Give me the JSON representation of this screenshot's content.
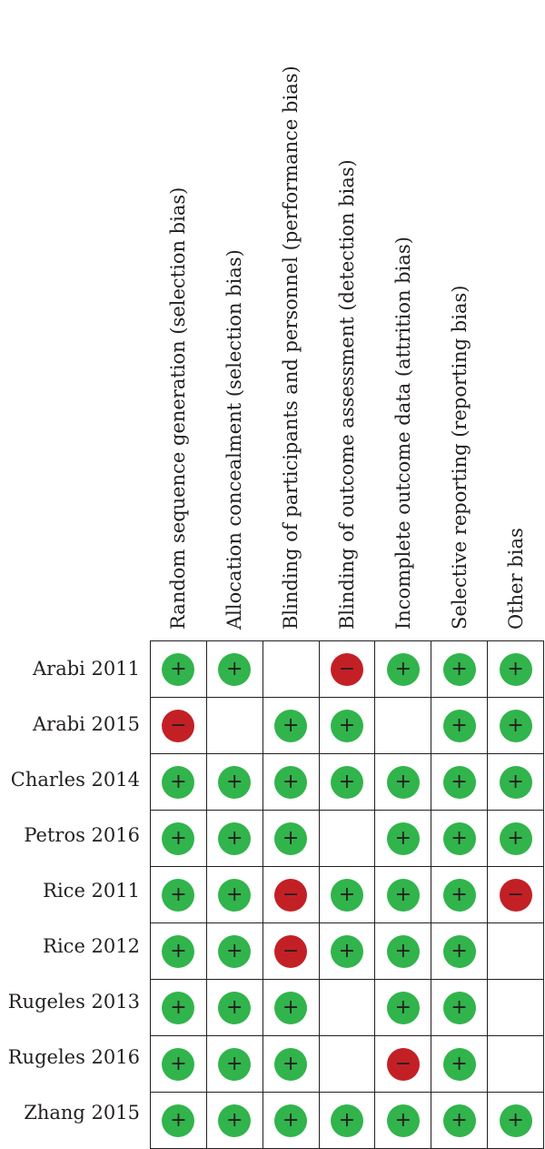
{
  "domains": [
    "Random sequence generation (selection bias)",
    "Allocation concealment (selection bias)",
    "Blinding of participants and personnel (performance bias)",
    "Blinding of outcome assessment (detection bias)",
    "Incomplete outcome data (attrition bias)",
    "Selective reporting (reporting bias)",
    "Other bias"
  ],
  "studies": [
    {
      "name": "Arabi 2011",
      "ratings": [
        "low",
        "low",
        "",
        "high",
        "low",
        "low",
        "low"
      ]
    },
    {
      "name": "Arabi 2015",
      "ratings": [
        "high",
        "",
        "low",
        "low",
        "",
        "low",
        "low"
      ]
    },
    {
      "name": "Charles 2014",
      "ratings": [
        "low",
        "low",
        "low",
        "low",
        "low",
        "low",
        "low"
      ]
    },
    {
      "name": "Petros 2016",
      "ratings": [
        "low",
        "low",
        "low",
        "",
        "low",
        "low",
        "low"
      ]
    },
    {
      "name": "Rice 2011",
      "ratings": [
        "low",
        "low",
        "high",
        "low",
        "low",
        "low",
        "high"
      ]
    },
    {
      "name": "Rice 2012",
      "ratings": [
        "low",
        "low",
        "high",
        "low",
        "low",
        "low",
        ""
      ]
    },
    {
      "name": "Rugeles 2013",
      "ratings": [
        "low",
        "low",
        "low",
        "",
        "low",
        "low",
        ""
      ]
    },
    {
      "name": "Rugeles 2016",
      "ratings": [
        "low",
        "low",
        "low",
        "",
        "high",
        "low",
        ""
      ]
    },
    {
      "name": "Zhang 2015",
      "ratings": [
        "low",
        "low",
        "low",
        "low",
        "low",
        "low",
        "low"
      ]
    }
  ],
  "symbols": {
    "low": "+",
    "high": "−"
  },
  "colors": {
    "low": "#31b44b",
    "high": "#c32026",
    "grid": "#231f20"
  }
}
